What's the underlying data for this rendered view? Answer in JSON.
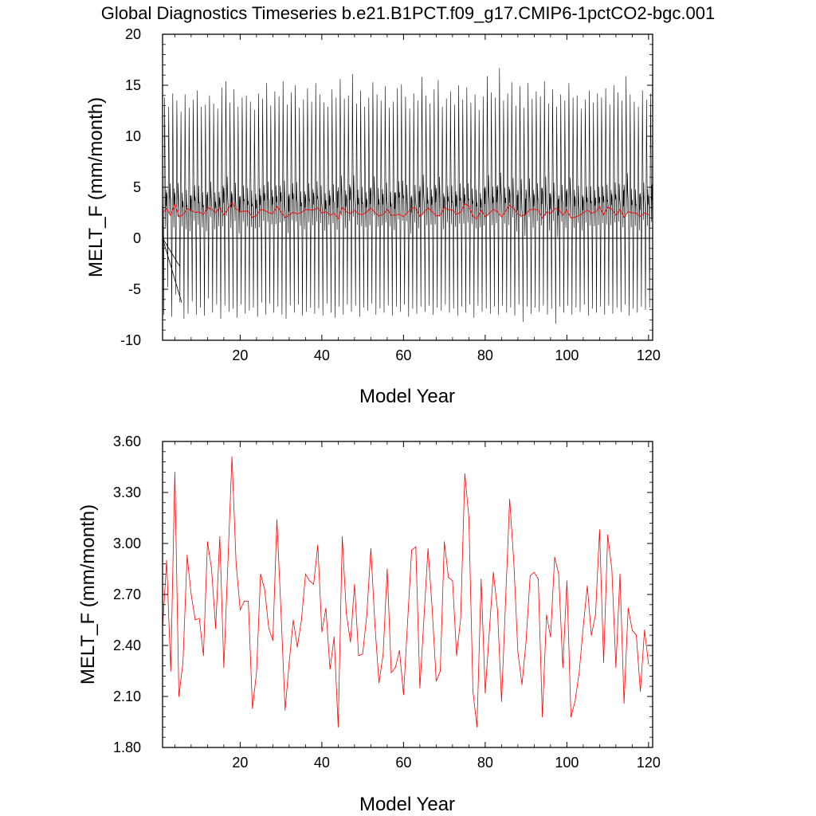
{
  "figure_title": "Global Diagnostics Timeseries b.e21.B1PCT.f09_g17.CMIP6-1pctCO2-bgc.001",
  "colors": {
    "monthly": "#000000",
    "annual": "#ff0000",
    "zero_line": "#000000",
    "frame": "#000000"
  },
  "chart_data": [
    {
      "type": "line",
      "title": "Global Diagnostics Timeseries b.e21.B1PCT.f09_g17.CMIP6-1pctCO2-bgc.001",
      "xlabel": "Model Year",
      "ylabel": "MELT_F (mm/month)",
      "xlim": [
        1,
        121
      ],
      "ylim": [
        -10,
        20
      ],
      "xticks": [
        "20",
        "40",
        "60",
        "80",
        "100",
        "120"
      ],
      "yticks": [
        "-10",
        "-5",
        "0",
        "5",
        "10",
        "15",
        "20"
      ],
      "grid": false,
      "reference_line_y": 0,
      "series": [
        {
          "name": "",
          "color": "#000000",
          "description_units": "monthly values, 12 per model year",
          "annual_max": [
            13.8,
            12.9,
            14.2,
            13.5,
            12.4,
            14.1,
            12.8,
            13.6,
            14.5,
            12.9,
            13.1,
            14.0,
            13.2,
            12.7,
            14.8,
            15.4,
            13.3,
            14.6,
            12.9,
            13.8,
            14.0,
            13.4,
            12.6,
            14.2,
            13.7,
            15.2,
            13.0,
            14.4,
            13.9,
            15.4,
            13.1,
            14.3,
            15.0,
            12.8,
            13.6,
            14.7,
            13.4,
            15.2,
            14.1,
            13.3,
            12.9,
            14.6,
            13.8,
            15.6,
            13.7,
            14.0,
            16.1,
            13.2,
            14.5,
            12.9,
            13.8,
            15.3,
            14.1,
            13.5,
            14.9,
            12.8,
            13.4,
            14.7,
            15.1,
            13.9,
            12.7,
            14.2,
            13.5,
            15.8,
            14.0,
            13.2,
            14.6,
            15.5,
            12.9,
            13.7,
            14.4,
            13.1,
            15.0,
            13.6,
            14.8,
            13.3,
            14.1,
            12.6,
            13.9,
            15.9,
            14.3,
            13.8,
            16.7,
            13.5,
            14.2,
            15.3,
            13.0,
            14.9,
            12.8,
            15.2,
            13.7,
            14.4,
            13.9,
            15.4,
            13.2,
            14.6,
            12.9,
            14.1,
            13.5,
            15.2,
            13.8,
            14.0,
            12.7,
            13.6,
            14.5,
            13.3,
            14.2,
            13.8,
            14.7,
            13.1,
            15.0,
            14.3,
            13.5,
            15.9,
            14.1,
            13.4,
            12.9,
            14.5,
            13.6,
            14.2
          ],
          "annual_min": [
            -7.5,
            -4.8,
            -7.7,
            -5.5,
            -6.3,
            -7.9,
            -7.4,
            -6.2,
            -7.5,
            -6.8,
            -7.6,
            -5.9,
            -7.3,
            -6.5,
            -7.9,
            -6.6,
            -7.2,
            -6.9,
            -7.8,
            -6.5,
            -7.4,
            -7.1,
            -6.8,
            -7.7,
            -6.3,
            -7.5,
            -6.4,
            -7.3,
            -6.7,
            -7.5,
            -7.9,
            -6.6,
            -7.3,
            -6.5,
            -7.6,
            -7.2,
            -6.8,
            -7.4,
            -6.9,
            -7.6,
            -6.4,
            -7.3,
            -7.8,
            -6.7,
            -7.5,
            -6.5,
            -7.2,
            -6.6,
            -7.7,
            -6.8,
            -7.1,
            -6.4,
            -7.5,
            -6.9,
            -7.3,
            -6.6,
            -7.6,
            -6.7,
            -7.2,
            -6.5,
            -7.7,
            -6.9,
            -7.4,
            -6.7,
            -7.2,
            -6.6,
            -7.5,
            -6.8,
            -7.1,
            -6.5,
            -7.3,
            -6.9,
            -7.6,
            -6.7,
            -7.3,
            -6.5,
            -7.8,
            -6.6,
            -7.2,
            -6.9,
            -7.4,
            -6.7,
            -7.5,
            -6.6,
            -7.3,
            -6.8,
            -7.6,
            -6.5,
            -8.2,
            -6.7,
            -7.4,
            -6.8,
            -7.2,
            -6.6,
            -7.5,
            -6.9,
            -8.4,
            -6.7,
            -7.3,
            -6.6,
            -7.5,
            -6.8,
            -7.2,
            -6.5,
            -7.6,
            -6.9,
            -7.3,
            -6.7,
            -7.5,
            -6.6,
            -7.4,
            -6.8,
            -7.2,
            -6.5,
            -7.6,
            -6.9,
            -7.3,
            -6.7,
            -7.0,
            -6.8
          ]
        },
        {
          "name": "",
          "color": "#ff0000",
          "description_units": "annual mean, one value per model year",
          "values": [
            2.5,
            2.9,
            2.25,
            3.42,
            2.1,
            2.3,
            2.93,
            2.7,
            2.55,
            2.56,
            2.34,
            3.01,
            2.85,
            2.5,
            3.04,
            2.27,
            2.89,
            3.51,
            2.88,
            2.61,
            2.66,
            2.66,
            2.03,
            2.24,
            2.82,
            2.73,
            2.5,
            2.43,
            3.14,
            2.6,
            2.02,
            2.3,
            2.55,
            2.39,
            2.55,
            2.82,
            2.78,
            2.76,
            2.99,
            2.48,
            2.62,
            2.26,
            2.45,
            1.92,
            3.04,
            2.59,
            2.42,
            2.76,
            2.34,
            2.35,
            2.58,
            2.97,
            2.52,
            2.18,
            2.35,
            2.85,
            2.24,
            2.27,
            2.37,
            2.11,
            2.54,
            2.96,
            2.98,
            2.15,
            2.56,
            2.97,
            2.62,
            2.19,
            2.25,
            3.01,
            2.8,
            2.78,
            2.34,
            2.56,
            3.41,
            3.15,
            2.13,
            1.92,
            2.79,
            2.12,
            2.48,
            2.83,
            2.61,
            2.07,
            2.67,
            3.26,
            2.89,
            2.36,
            2.17,
            2.42,
            2.81,
            2.83,
            2.79,
            1.98,
            2.58,
            2.45,
            2.92,
            2.82,
            2.27,
            2.78,
            1.98,
            2.07,
            2.24,
            2.51,
            2.75,
            2.46,
            2.58,
            3.08,
            2.3,
            3.05,
            2.85,
            2.27,
            2.82,
            2.06,
            2.62,
            2.49,
            2.46,
            2.13,
            2.49,
            2.29
          ]
        }
      ]
    },
    {
      "type": "line",
      "title": "",
      "xlabel": "Model Year",
      "ylabel": "MELT_F (mm/month)",
      "xlim": [
        1,
        121
      ],
      "ylim": [
        1.8,
        3.6
      ],
      "xticks": [
        "20",
        "40",
        "60",
        "80",
        "100",
        "120"
      ],
      "yticks": [
        "1.80",
        "2.10",
        "2.40",
        "2.70",
        "3.00",
        "3.30",
        "3.60"
      ],
      "grid": false,
      "series": [
        {
          "name": "",
          "color": "#ff0000",
          "values": "same as chart_data[0].series[1].values"
        }
      ]
    }
  ]
}
